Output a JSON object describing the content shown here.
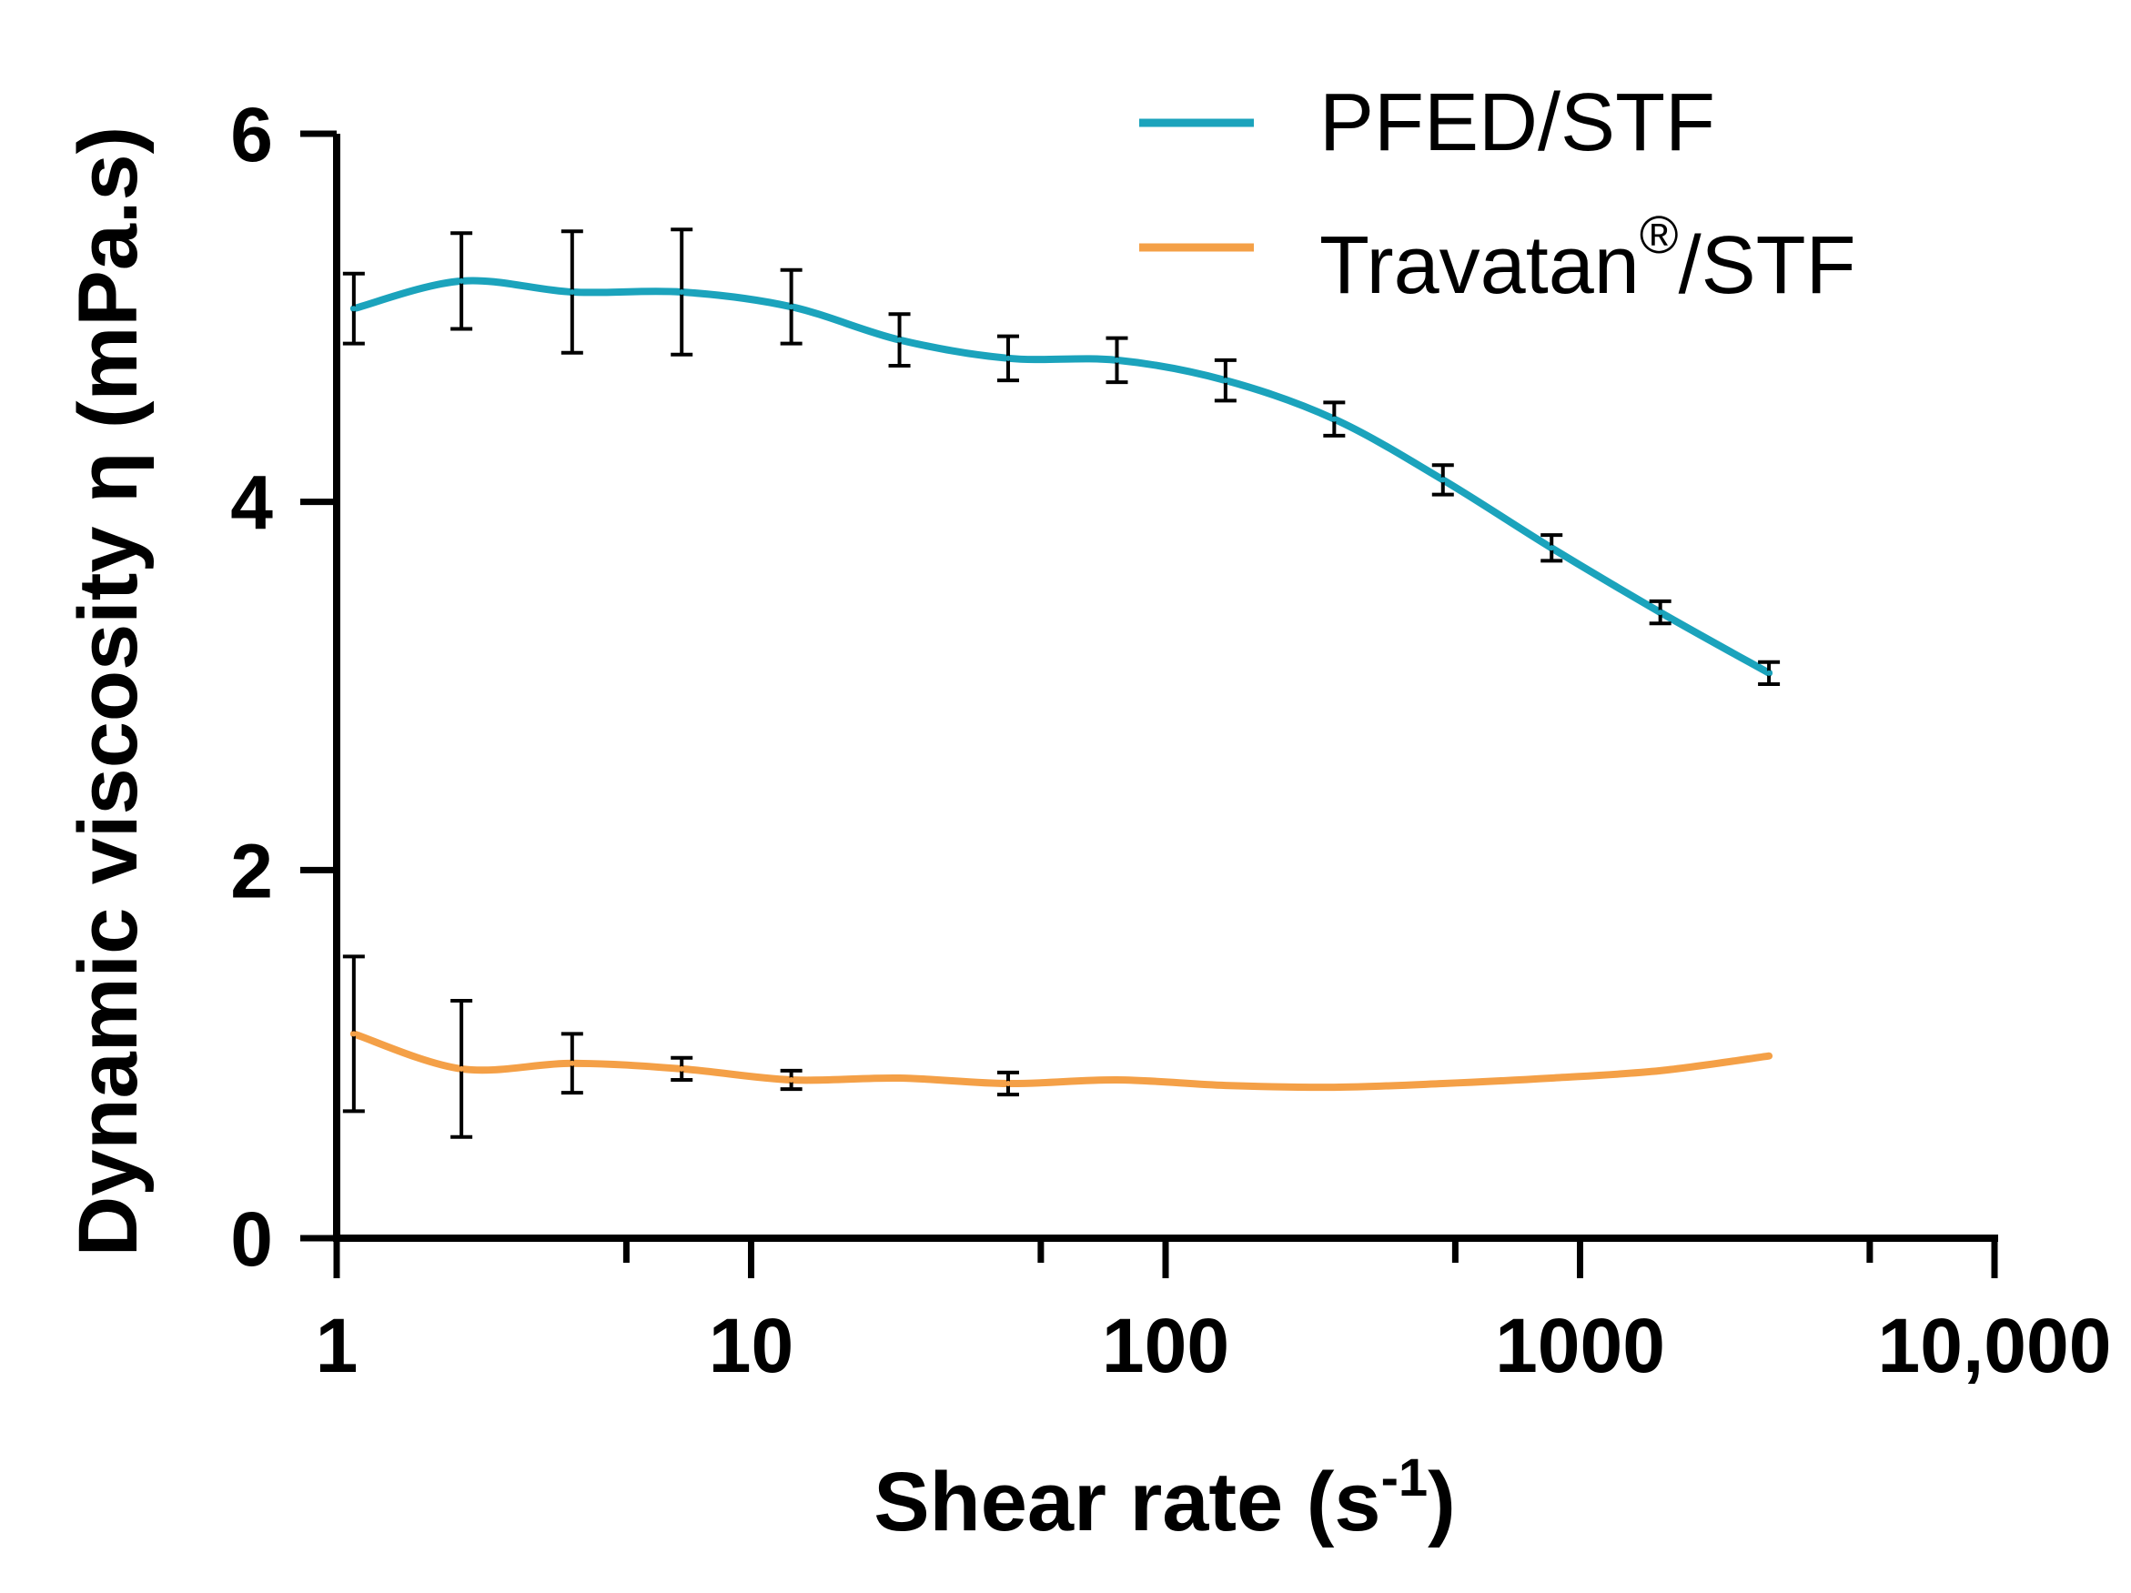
{
  "chart_data": {
    "type": "line",
    "title": "",
    "xlabel": "Shear rate (s",
    "xlabel_sup": "-1",
    "xlabel_close": ")",
    "ylabel": "Dynamic viscosity η (mPa.s)",
    "xscale": "log",
    "xlim": [
      1,
      10000
    ],
    "ylim": [
      0,
      6
    ],
    "x_tick_labels": [
      {
        "value": 1,
        "label": "1"
      },
      {
        "value": 10,
        "label": "10"
      },
      {
        "value": 100,
        "label": "100"
      },
      {
        "value": 1000,
        "label": "1000"
      },
      {
        "value": 10000,
        "label": "10,000"
      }
    ],
    "y_tick_labels": [
      {
        "value": 0,
        "label": "0"
      },
      {
        "value": 2,
        "label": "2"
      },
      {
        "value": 4,
        "label": "4"
      },
      {
        "value": 6,
        "label": "6"
      }
    ],
    "legend_position": "top-right",
    "series": [
      {
        "name": "PFED/STF",
        "color": "#1BA3BC",
        "x": [
          1.1,
          2.0,
          3.7,
          6.8,
          12.5,
          22.8,
          41.7,
          76.3,
          139.5,
          255.2,
          466.8,
          853.8,
          1561.6,
          2856.0
        ],
        "y": [
          5.05,
          5.2,
          5.14,
          5.14,
          5.06,
          4.88,
          4.78,
          4.77,
          4.66,
          4.45,
          4.12,
          3.75,
          3.4,
          3.07
        ],
        "err": [
          0.19,
          0.26,
          0.33,
          0.34,
          0.2,
          0.14,
          0.12,
          0.12,
          0.11,
          0.09,
          0.08,
          0.07,
          0.06,
          0.06
        ]
      },
      {
        "name": "Travatan",
        "name_sup": "®",
        "name_suffix": "/STF",
        "color": "#F4A047",
        "x": [
          1.1,
          2.0,
          3.7,
          6.8,
          12.5,
          22.8,
          41.7,
          76.3,
          139.5,
          255.2,
          466.8,
          853.8,
          1561.6,
          2856.0
        ],
        "y": [
          1.11,
          0.92,
          0.95,
          0.92,
          0.86,
          0.87,
          0.84,
          0.86,
          0.83,
          0.82,
          0.84,
          0.87,
          0.91,
          0.99
        ],
        "err": [
          0.42,
          0.37,
          0.16,
          0.06,
          0.05,
          0.0,
          0.06,
          0.0,
          0.0,
          0.0,
          0.0,
          0.0,
          0.0,
          0.0
        ]
      }
    ]
  }
}
